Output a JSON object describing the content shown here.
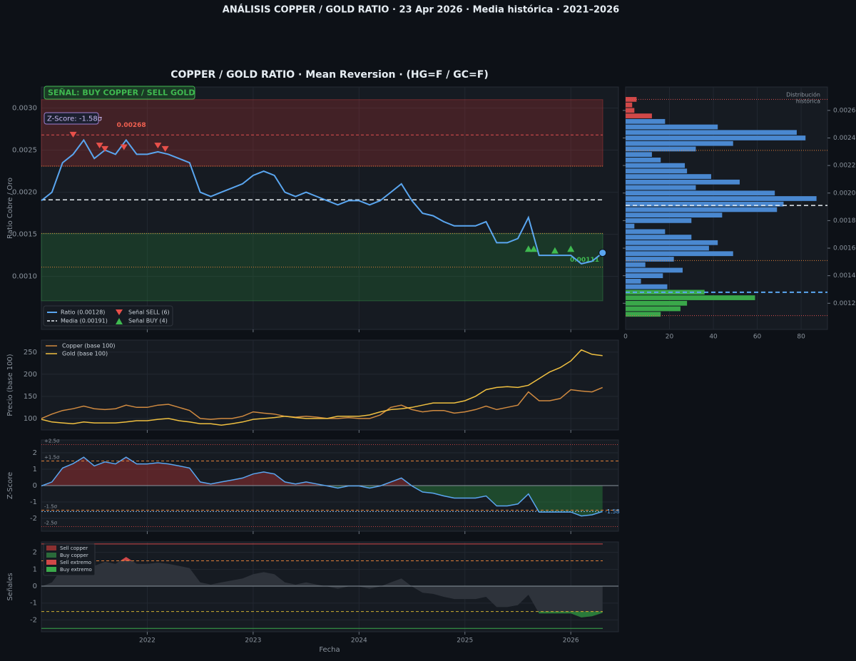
{
  "title": "ANÁLISIS COPPER / GOLD RATIO  ·  23 Apr 2026  ·  Media histórica  ·  2021–2026",
  "chart_data": [
    {
      "type": "line",
      "title": "COPPER / GOLD RATIO  ·  Mean Reversion  ·  (HG=F / GC=F)",
      "ylabel": "Ratio Cobre / Oro",
      "x": [
        2021.0,
        2021.1,
        2021.2,
        2021.3,
        2021.4,
        2021.5,
        2021.6,
        2021.7,
        2021.8,
        2021.9,
        2022.0,
        2022.1,
        2022.2,
        2022.3,
        2022.4,
        2022.5,
        2022.6,
        2022.7,
        2022.8,
        2022.9,
        2023.0,
        2023.1,
        2023.2,
        2023.3,
        2023.4,
        2023.5,
        2023.6,
        2023.7,
        2023.8,
        2023.9,
        2024.0,
        2024.1,
        2024.2,
        2024.3,
        2024.4,
        2024.5,
        2024.6,
        2024.7,
        2024.8,
        2024.9,
        2025.0,
        2025.1,
        2025.2,
        2025.3,
        2025.4,
        2025.5,
        2025.6,
        2025.7,
        2025.8,
        2025.9,
        2026.0,
        2026.1,
        2026.2,
        2026.3
      ],
      "series": [
        {
          "name": "Ratio  (0.00128)",
          "color": "#5aa6f0",
          "values": [
            0.0019,
            0.002,
            0.00235,
            0.00245,
            0.00262,
            0.0024,
            0.0025,
            0.00245,
            0.00262,
            0.00245,
            0.00245,
            0.00248,
            0.00245,
            0.0024,
            0.00235,
            0.002,
            0.00195,
            0.002,
            0.00205,
            0.0021,
            0.0022,
            0.00225,
            0.0022,
            0.002,
            0.00195,
            0.002,
            0.00195,
            0.0019,
            0.00185,
            0.0019,
            0.0019,
            0.00185,
            0.0019,
            0.002,
            0.0021,
            0.0019,
            0.00175,
            0.00172,
            0.00165,
            0.0016,
            0.0016,
            0.0016,
            0.00165,
            0.0014,
            0.0014,
            0.00145,
            0.0017,
            0.00125,
            0.00125,
            0.00125,
            0.00125,
            0.00115,
            0.00118,
            0.00128
          ]
        }
      ],
      "mean": {
        "name": "Media  (0.00191)",
        "value": 0.00191
      },
      "sell_signals": {
        "name": "Señal SELL (6)",
        "color": "#e8504a",
        "x": [
          2021.3,
          2021.55,
          2021.6,
          2021.78,
          2022.1,
          2022.17
        ],
        "values": [
          0.00265,
          0.00252,
          0.00248,
          0.0025,
          0.00252,
          0.00248
        ]
      },
      "buy_signals": {
        "name": "Señal BUY  (4)",
        "color": "#3fb950",
        "x": [
          2025.6,
          2025.65,
          2025.85,
          2026.0
        ],
        "values": [
          0.0013,
          0.0013,
          0.00128,
          0.0013
        ]
      },
      "sell_zone": [
        0.00231,
        0.0031
      ],
      "buy_zone": [
        0.00071,
        0.00151
      ],
      "sell_extreme": 0.00268,
      "buy_extreme": 0.00111,
      "annotations": {
        "signal": "SEÑAL: BUY COPPER / SELL GOLD",
        "zscore": "Z-Score: -1.58σ"
      },
      "xlim": [
        2021.0,
        2026.45
      ],
      "ylim": [
        0.00037,
        0.00325
      ],
      "yticks": [
        {
          "value": 0.001,
          "label": "0.0010"
        },
        0.0015,
        {
          "value": 0.002,
          "label": "0.0020"
        },
        0.0025,
        {
          "value": 0.003,
          "label": "0.0030"
        }
      ]
    },
    {
      "type": "histogram",
      "orientation": "horizontal",
      "label": [
        "Distribución",
        "histórica"
      ],
      "bins": [
        0.0011,
        0.00114,
        0.00118,
        0.00122,
        0.00126,
        0.0013,
        0.00134,
        0.00138,
        0.00142,
        0.00146,
        0.0015,
        0.00154,
        0.00158,
        0.00162,
        0.00166,
        0.0017,
        0.00174,
        0.00178,
        0.00182,
        0.00186,
        0.0019,
        0.00194,
        0.00198,
        0.00202,
        0.00206,
        0.0021,
        0.00214,
        0.00218,
        0.00222,
        0.00226,
        0.0023,
        0.00234,
        0.00238,
        0.00242,
        0.00246,
        0.0025,
        0.00254,
        0.00258,
        0.00262,
        0.00266,
        0.0027
      ],
      "counts": [
        16,
        25,
        28,
        59,
        36,
        19,
        7,
        17,
        26,
        9,
        22,
        49,
        38,
        42,
        30,
        18,
        4,
        30,
        44,
        69,
        72,
        87,
        68,
        32,
        52,
        39,
        28,
        27,
        16,
        12,
        32,
        49,
        82,
        78,
        42,
        18,
        12,
        4,
        3,
        5
      ],
      "colors": [
        "#3aa84a",
        "#3aa84a",
        "#3aa84a",
        "#3aa84a",
        "#3aa84a",
        "#4a88d0",
        "#4a88d0",
        "#4a88d0",
        "#4a88d0",
        "#4a88d0",
        "#4a88d0",
        "#4a88d0",
        "#4a88d0",
        "#4a88d0",
        "#4a88d0",
        "#4a88d0",
        "#4a88d0",
        "#4a88d0",
        "#4a88d0",
        "#4a88d0",
        "#4a88d0",
        "#4a88d0",
        "#4a88d0",
        "#4a88d0",
        "#4a88d0",
        "#4a88d0",
        "#4a88d0",
        "#4a88d0",
        "#4a88d0",
        "#4a88d0",
        "#4a88d0",
        "#4a88d0",
        "#4a88d0",
        "#4a88d0",
        "#4a88d0",
        "#4a88d0",
        "#d04848",
        "#d04848",
        "#d04848",
        "#d04848"
      ],
      "xlim": [
        0,
        92
      ],
      "xticks": [
        0,
        20,
        40,
        60,
        80
      ],
      "ylim": [
        0.00101,
        0.00277
      ],
      "yticks": [
        0.0012,
        0.0014,
        0.0016,
        0.0018,
        {
          "value": 0.002,
          "label": "0.0020"
        },
        0.0022,
        0.0024,
        0.0026
      ]
    },
    {
      "type": "line",
      "ylabel": "Precio (base 100)",
      "series": [
        {
          "name": "Copper (base 100)",
          "color": "#d08a40",
          "values": [
            100,
            110,
            118,
            122,
            128,
            122,
            120,
            122,
            130,
            125,
            125,
            130,
            132,
            125,
            118,
            100,
            98,
            100,
            100,
            105,
            115,
            112,
            110,
            105,
            103,
            105,
            103,
            100,
            100,
            102,
            100,
            100,
            108,
            125,
            130,
            120,
            115,
            118,
            118,
            112,
            115,
            120,
            128,
            120,
            125,
            130,
            160,
            140,
            140,
            145,
            165,
            162,
            160,
            170
          ]
        },
        {
          "name": "Gold  (base 100)",
          "color": "#f0c040",
          "values": [
            98,
            92,
            90,
            88,
            92,
            90,
            90,
            90,
            92,
            95,
            95,
            98,
            100,
            95,
            92,
            88,
            88,
            85,
            88,
            92,
            98,
            100,
            102,
            105,
            102,
            100,
            100,
            100,
            105,
            105,
            105,
            108,
            115,
            120,
            122,
            125,
            130,
            135,
            135,
            135,
            140,
            150,
            165,
            170,
            172,
            170,
            175,
            190,
            205,
            215,
            230,
            255,
            245,
            242
          ]
        }
      ],
      "ylim": [
        74,
        277
      ],
      "yticks": [
        100,
        150,
        200,
        250
      ]
    },
    {
      "type": "line",
      "ylabel": "Z-Score",
      "color": "#5aa6f0",
      "values": [
        -0.02,
        0.22,
        1.07,
        1.34,
        1.73,
        1.2,
        1.44,
        1.32,
        1.73,
        1.32,
        1.32,
        1.39,
        1.32,
        1.2,
        1.07,
        0.22,
        0.1,
        0.22,
        0.34,
        0.46,
        0.71,
        0.83,
        0.71,
        0.22,
        0.1,
        0.22,
        0.1,
        -0.02,
        -0.15,
        -0.02,
        -0.02,
        -0.15,
        -0.02,
        0.22,
        0.46,
        -0.02,
        -0.39,
        -0.46,
        -0.63,
        -0.76,
        -0.76,
        -0.76,
        -0.63,
        -1.24,
        -1.24,
        -1.12,
        -0.51,
        -1.61,
        -1.61,
        -1.61,
        -1.61,
        -1.85,
        -1.78,
        -1.58
      ],
      "levels": [
        {
          "value": 2.5,
          "label": "+2.5σ"
        },
        {
          "value": 1.5,
          "label": "+1.5σ"
        },
        {
          "value": -1.5,
          "label": "-1.5σ"
        },
        {
          "value": -2.5,
          "label": "-2.5σ"
        }
      ],
      "ylim": [
        -2.78,
        2.78
      ],
      "yticks": [
        -2,
        -1,
        0,
        1,
        2
      ]
    },
    {
      "type": "area",
      "ylabel": "Señales",
      "xlabel": "Fecha",
      "legend": [
        {
          "name": "Sell copper",
          "color": "#8a3030"
        },
        {
          "name": "Buy copper",
          "color": "#2a6a3a"
        },
        {
          "name": "Sell extremo",
          "color": "#d04848"
        },
        {
          "name": "Buy extremo",
          "color": "#3aa84a"
        }
      ],
      "levels": [
        {
          "value": 2.5,
          "color": "#d04848"
        },
        {
          "value": 1.5,
          "color": "#e0803a"
        },
        {
          "value": -1.5,
          "color": "#d0b030"
        },
        {
          "value": -2.5,
          "color": "#3aa84a"
        }
      ],
      "ylim": [
        -2.7,
        2.62
      ],
      "yticks": [
        -2,
        -1,
        0,
        1,
        2
      ],
      "xticks": [
        2022,
        2023,
        2024,
        2025,
        2026
      ]
    }
  ]
}
